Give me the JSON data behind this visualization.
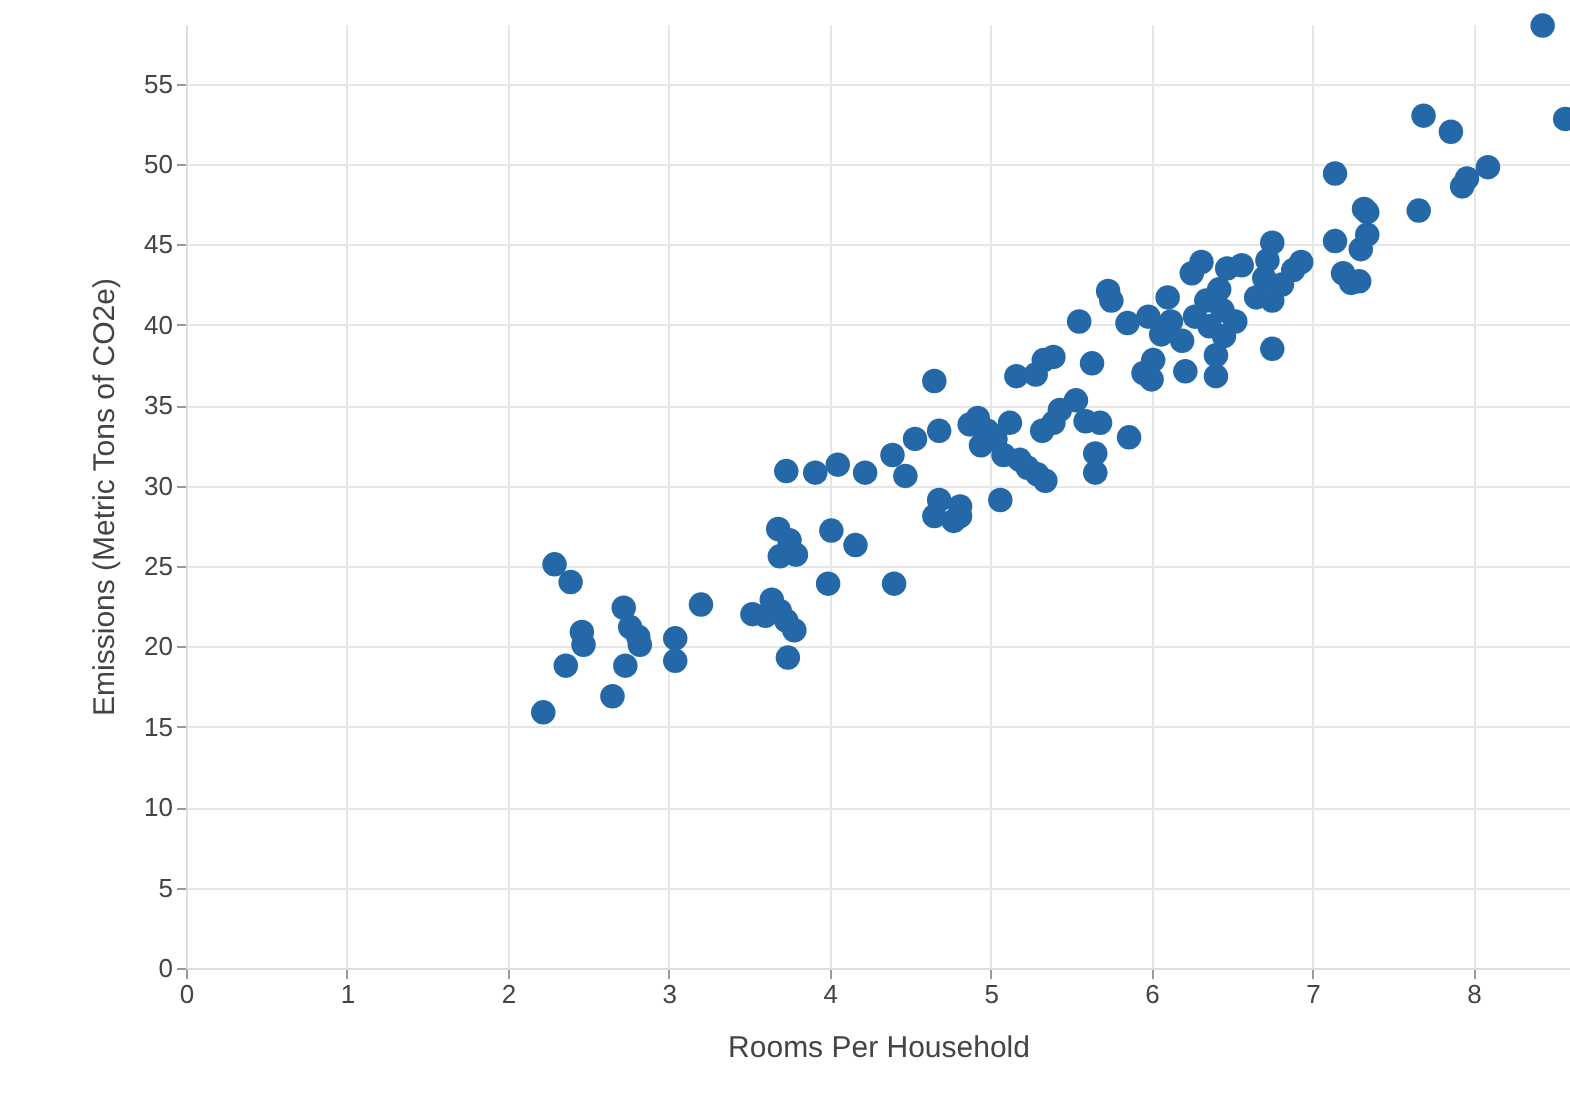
{
  "chart_data": {
    "type": "scatter",
    "xlabel": "Rooms Per Household",
    "ylabel": "Emissions (Metric Tons of CO2e)",
    "xlim": [
      0,
      8.6
    ],
    "ylim": [
      0,
      58.7
    ],
    "xticks": [
      0,
      1,
      2,
      3,
      4,
      5,
      6,
      7,
      8
    ],
    "yticks": [
      0,
      5,
      10,
      15,
      20,
      25,
      30,
      35,
      40,
      45,
      50,
      55
    ],
    "grid": true,
    "marker": "circle",
    "series": [
      {
        "color": "#2468a8",
        "x": [
          2.22,
          2.29,
          2.39,
          2.36,
          2.46,
          2.47,
          2.65,
          2.72,
          2.76,
          2.73,
          2.81,
          2.82,
          3.04,
          3.04,
          3.2,
          3.52,
          3.6,
          3.64,
          3.68,
          3.69,
          3.73,
          3.73,
          3.74,
          3.75,
          3.79,
          3.69,
          3.78,
          3.91,
          3.99,
          4.01,
          4.05,
          4.16,
          4.22,
          4.39,
          4.4,
          4.47,
          4.53,
          4.65,
          4.68,
          4.65,
          4.68,
          4.77,
          4.81,
          4.81,
          4.87,
          4.92,
          4.94,
          4.98,
          5.03,
          5.06,
          5.08,
          5.12,
          5.16,
          5.18,
          5.23,
          5.29,
          5.32,
          5.34,
          5.28,
          5.33,
          5.39,
          5.39,
          5.43,
          5.53,
          5.55,
          5.59,
          5.65,
          5.65,
          5.68,
          5.63,
          5.73,
          5.75,
          5.86,
          5.85,
          5.95,
          5.98,
          6.01,
          6.0,
          6.06,
          6.1,
          6.12,
          6.19,
          6.21,
          6.25,
          6.27,
          6.31,
          6.34,
          6.36,
          6.4,
          6.4,
          6.42,
          6.44,
          6.47,
          6.45,
          6.52,
          6.56,
          6.65,
          6.7,
          6.72,
          6.75,
          6.75,
          6.75,
          6.81,
          6.88,
          6.93,
          7.14,
          7.14,
          7.19,
          7.24,
          7.29,
          7.3,
          7.34,
          7.34,
          7.32,
          7.69,
          7.66,
          7.86,
          7.93,
          7.96,
          8.09,
          8.43,
          8.57
        ],
        "values": [
          15.9,
          25.1,
          24.0,
          18.8,
          20.9,
          20.1,
          16.9,
          22.4,
          21.2,
          18.8,
          20.6,
          20.1,
          20.5,
          19.1,
          22.6,
          22.0,
          21.9,
          22.9,
          27.3,
          25.6,
          30.9,
          21.6,
          19.3,
          26.6,
          25.7,
          22.2,
          21.0,
          30.8,
          23.9,
          27.2,
          31.3,
          26.3,
          30.8,
          31.9,
          23.9,
          30.6,
          32.9,
          36.5,
          33.4,
          28.1,
          29.1,
          27.8,
          28.7,
          28.1,
          33.8,
          34.2,
          32.5,
          33.4,
          32.9,
          29.1,
          31.9,
          33.9,
          36.8,
          31.6,
          31.1,
          30.7,
          33.4,
          30.3,
          36.9,
          37.8,
          38.0,
          33.9,
          34.7,
          35.3,
          40.2,
          34.0,
          32.0,
          30.8,
          33.9,
          37.6,
          42.1,
          41.5,
          33.0,
          40.1,
          37.0,
          40.5,
          37.8,
          36.6,
          39.4,
          41.7,
          40.2,
          39.0,
          37.1,
          43.2,
          40.5,
          43.9,
          41.5,
          39.9,
          38.1,
          36.8,
          42.2,
          40.9,
          43.5,
          39.3,
          40.2,
          43.7,
          41.7,
          42.9,
          44.0,
          45.1,
          41.5,
          38.5,
          42.5,
          43.4,
          43.9,
          49.4,
          45.2,
          43.2,
          42.6,
          42.7,
          44.7,
          45.6,
          47.0,
          47.2,
          53.0,
          47.1,
          52.0,
          48.6,
          49.1,
          49.8,
          58.6,
          52.8
        ]
      }
    ]
  }
}
